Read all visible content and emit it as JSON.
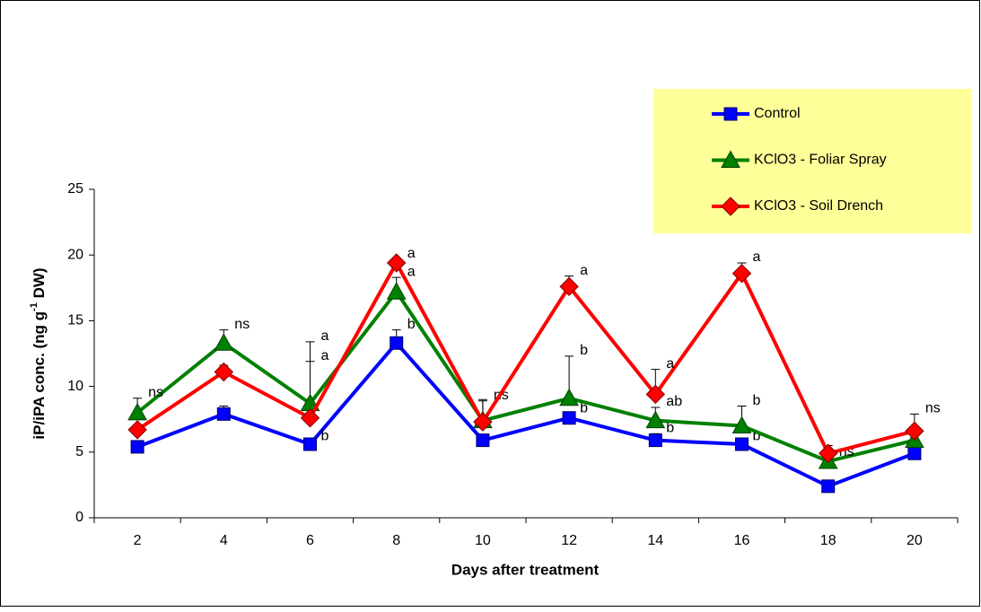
{
  "chart_data": {
    "type": "line",
    "xlabel": "Days after treatment",
    "ylabel": {
      "text": "iP/iPA conc. (ng g",
      "superscript": "-1",
      "suffix": " DW)"
    },
    "categories": [
      "2",
      "4",
      "6",
      "8",
      "10",
      "12",
      "14",
      "16",
      "18",
      "20"
    ],
    "ylim": [
      0,
      25
    ],
    "yticks": [
      0,
      5,
      10,
      15,
      20,
      25
    ],
    "legend_position": "upper right",
    "series": [
      {
        "name": "Control",
        "color": "#0000ff",
        "marker": "square",
        "values": [
          5.4,
          7.9,
          5.6,
          13.3,
          5.9,
          7.6,
          5.9,
          5.6,
          2.4,
          4.9
        ],
        "errors": [
          0.2,
          0.6,
          0.2,
          1.0,
          0.2,
          0.3,
          0.5,
          0.2,
          0.2,
          0.2
        ],
        "letters": [
          null,
          null,
          "b",
          "b",
          null,
          "b",
          "b",
          "b",
          null,
          null
        ]
      },
      {
        "name": "KClO3 - Foliar Spray",
        "color": "#008000",
        "marker": "triangle",
        "values": [
          8.0,
          13.3,
          8.7,
          17.2,
          7.4,
          9.1,
          7.4,
          7.0,
          4.3,
          5.9
        ],
        "errors": [
          1.1,
          1.0,
          3.2,
          1.1,
          1.5,
          3.2,
          1.0,
          1.5,
          0.3,
          0.5
        ],
        "letters": [
          "ns",
          "ns",
          "a",
          "a",
          "ns",
          "b",
          "ab",
          "b",
          "ns",
          null
        ]
      },
      {
        "name": "KClO3 - Soil Drench",
        "color": "#ff0000",
        "marker": "diamond",
        "values": [
          6.7,
          11.1,
          7.6,
          19.4,
          7.3,
          17.6,
          9.4,
          18.6,
          4.9,
          6.6
        ],
        "errors": [
          0.3,
          0.5,
          5.8,
          0.3,
          1.7,
          0.8,
          1.9,
          0.8,
          0.6,
          1.3
        ],
        "letters": [
          null,
          null,
          "a",
          "a",
          null,
          "a",
          "a",
          "a",
          null,
          "ns"
        ]
      }
    ]
  }
}
